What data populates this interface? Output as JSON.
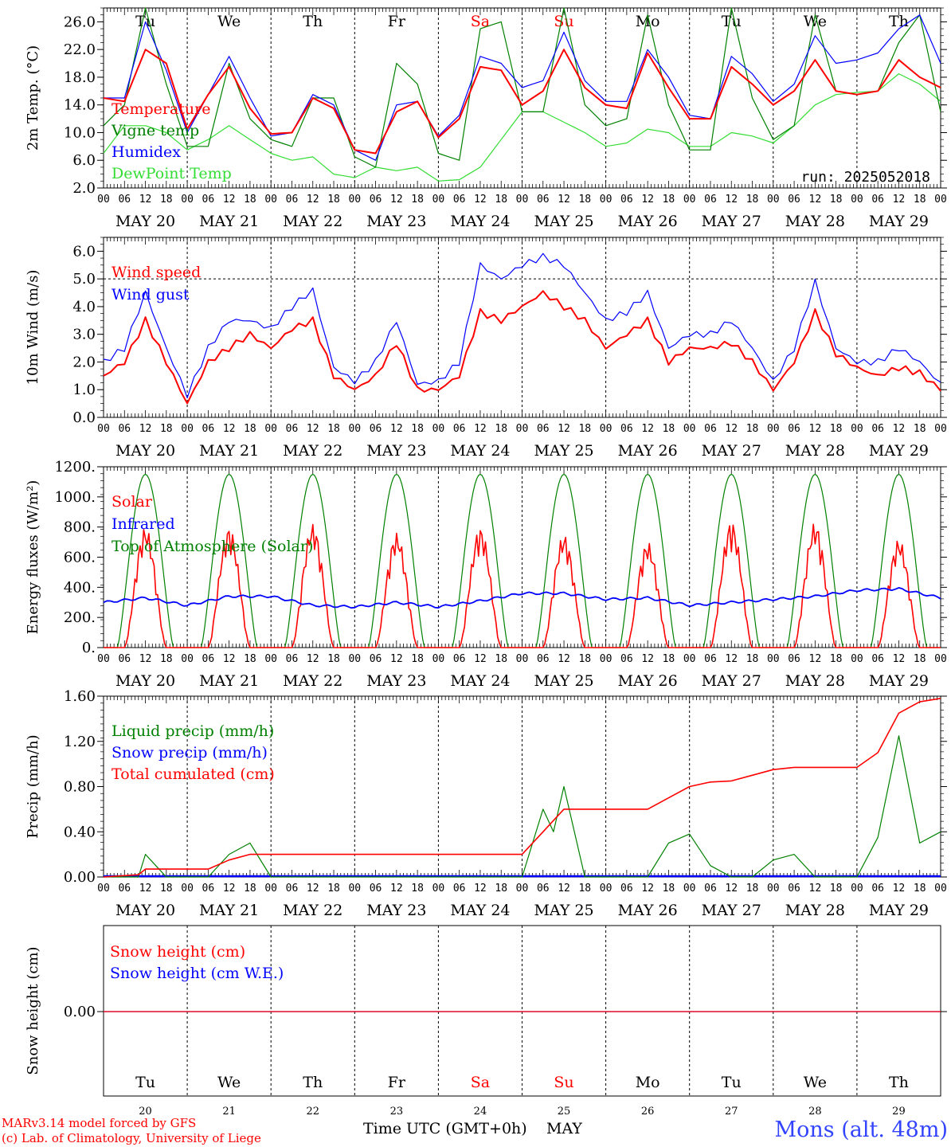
{
  "days": [
    "Tu",
    "We",
    "Th",
    "Fr",
    "Sa",
    "Su",
    "Mo",
    "Tu",
    "We",
    "Th"
  ],
  "weekend_days": [
    "Sa",
    "Su"
  ],
  "dates": [
    "MAY 20",
    "MAY 21",
    "MAY 22",
    "MAY 23",
    "MAY 24",
    "MAY 25",
    "MAY 26",
    "MAY 27",
    "MAY 28",
    "MAY 29"
  ],
  "day_numbers": [
    "20",
    "21",
    "22",
    "23",
    "24",
    "25",
    "26",
    "27",
    "28",
    "29"
  ],
  "hour_labels": [
    "00",
    "06",
    "12",
    "18"
  ],
  "run_label": "run: 2025052018",
  "footer": {
    "credit1": "MARv3.14 model forced by GFS",
    "credit2": "(c) Lab. of Climatology, University of Liege",
    "xlabel": "Time UTC (GMT+0h)",
    "month": "MAY",
    "station": "Mons (alt. 48m)"
  },
  "colors": {
    "red": "#ff0000",
    "green": "#008000",
    "blue": "#0000ff",
    "lightgreen": "#33dd33",
    "station": "#3344ff"
  },
  "chart_data": [
    {
      "type": "line",
      "ylabel": "2m Temp. (°C)",
      "ylim": [
        2,
        28
      ],
      "yticks": [
        "2.0",
        "6.0",
        "10.0",
        "14.0",
        "18.0",
        "22.0",
        "26.0"
      ],
      "legend": [
        "Temperature",
        "Vigne temp",
        "Humidex",
        "DewPoint Temp"
      ],
      "x_hours": [
        0,
        6,
        12,
        18,
        24,
        30,
        36,
        42,
        48,
        54,
        60,
        66,
        72,
        78,
        84,
        90,
        96,
        102,
        108,
        114,
        120,
        126,
        132,
        138,
        144,
        150,
        156,
        162,
        168,
        174,
        180,
        186,
        192,
        198,
        204,
        210,
        216,
        222,
        228,
        234,
        240
      ],
      "series": [
        {
          "name": "Temperature",
          "color": "#ff0000",
          "values": [
            15,
            14.5,
            22,
            20,
            10.5,
            15.5,
            19.5,
            13.5,
            9.8,
            10,
            15,
            13.5,
            7.5,
            7,
            13,
            14.5,
            9.3,
            12,
            19.5,
            19,
            14,
            16,
            22,
            16.5,
            14,
            13.5,
            21.5,
            16.5,
            12,
            12,
            19.5,
            17,
            14,
            16,
            20.5,
            16,
            15.5,
            16,
            20.5,
            18,
            16.5
          ]
        },
        {
          "name": "Vigne temp",
          "color": "#008000",
          "values": [
            11,
            14,
            28,
            17,
            8,
            8,
            20,
            12,
            9,
            8,
            15,
            15,
            6.5,
            5,
            20,
            17,
            7,
            6,
            25,
            26,
            13,
            13,
            28,
            14,
            11,
            12,
            27,
            14,
            7.5,
            7.5,
            28,
            15,
            9,
            11,
            27,
            16,
            15.5,
            16,
            23,
            27,
            13
          ]
        },
        {
          "name": "Humidex",
          "color": "#0000ff",
          "values": [
            15,
            15,
            26,
            19,
            10,
            15.5,
            21,
            15,
            9.5,
            10,
            15.5,
            14,
            7.5,
            6,
            14,
            14.5,
            9.5,
            12.5,
            21,
            20,
            16.5,
            17.5,
            24.5,
            17.5,
            14.5,
            14.5,
            22,
            18,
            12.5,
            12,
            21,
            18.5,
            14.5,
            17,
            24,
            20,
            20.5,
            21.5,
            25,
            27,
            20
          ]
        },
        {
          "name": "DewPoint Temp",
          "color": "#33dd33",
          "values": [
            7,
            11,
            11,
            10,
            7.5,
            9,
            11,
            9,
            7,
            6,
            6.5,
            4,
            3.5,
            5,
            4.5,
            5,
            3,
            3.2,
            5,
            9,
            13,
            13,
            11.5,
            10,
            8,
            8.5,
            10.5,
            10,
            8,
            8,
            10,
            9.5,
            8.5,
            11,
            14,
            15.5,
            15.8,
            16,
            18.5,
            17,
            14.5
          ]
        }
      ]
    },
    {
      "type": "line",
      "ylabel": "10m Wind (m/s)",
      "ylim": [
        0,
        6.5
      ],
      "yticks": [
        "0.0",
        "1.0",
        "2.0",
        "3.0",
        "4.0",
        "5.0",
        "6.0"
      ],
      "reference_line": 5.0,
      "legend": [
        "Wind speed",
        "Wind gust"
      ],
      "x_hours": [
        0,
        6,
        12,
        18,
        24,
        30,
        36,
        42,
        48,
        54,
        60,
        66,
        72,
        78,
        84,
        90,
        96,
        102,
        108,
        114,
        120,
        126,
        132,
        138,
        144,
        150,
        156,
        162,
        168,
        174,
        180,
        186,
        192,
        198,
        204,
        210,
        216,
        222,
        228,
        234,
        240
      ],
      "series": [
        {
          "name": "Wind speed",
          "color": "#ff0000",
          "values": [
            1.5,
            2,
            3.5,
            2,
            0.5,
            2,
            2.5,
            3,
            2.5,
            3.2,
            3.5,
            1.5,
            1,
            1.5,
            2.7,
            1,
            1,
            1.5,
            3.8,
            3.5,
            4,
            4.5,
            4,
            3.5,
            2.5,
            3,
            3.5,
            2,
            2.5,
            2.5,
            2.7,
            2,
            1,
            2,
            3.8,
            2.3,
            1.8,
            1.5,
            1.8,
            1.6,
            1
          ]
        },
        {
          "name": "Wind gust",
          "color": "#0000ff",
          "values": [
            2,
            2.5,
            4.5,
            2.5,
            0.8,
            2.5,
            3.5,
            3.5,
            3.2,
            4,
            4.6,
            1.8,
            1.3,
            2,
            3.5,
            1.2,
            1.3,
            2,
            5.5,
            5,
            5.5,
            5.8,
            5.5,
            4.5,
            3.5,
            3.8,
            4.5,
            2.5,
            3,
            3,
            3.5,
            2.5,
            1.3,
            2.5,
            4.9,
            2.5,
            2,
            2,
            2.5,
            2,
            1.2
          ]
        }
      ]
    },
    {
      "type": "line",
      "ylabel": "Energy fluxes (W/m²)",
      "ylim": [
        0,
        1200
      ],
      "yticks": [
        "0.",
        "200.",
        "400.",
        "600.",
        "800.",
        "1000.",
        "1200."
      ],
      "legend": [
        "Solar",
        "Infrared",
        "Top of Atmosphere (Solar)"
      ],
      "toa_peak": 1150,
      "solar_peaks": [
        800,
        800,
        820,
        760,
        800,
        750,
        700,
        840,
        830,
        720
      ],
      "infrared_hours": [
        0,
        12,
        24,
        36,
        48,
        60,
        72,
        84,
        96,
        108,
        120,
        132,
        144,
        156,
        168,
        180,
        192,
        204,
        216,
        228,
        240
      ],
      "infrared_values": [
        300,
        330,
        280,
        340,
        340,
        280,
        270,
        300,
        270,
        310,
        360,
        360,
        320,
        330,
        280,
        300,
        320,
        340,
        380,
        390,
        330
      ],
      "series": [
        {
          "name": "Solar",
          "color": "#ff0000"
        },
        {
          "name": "Infrared",
          "color": "#0000ff"
        },
        {
          "name": "Top of Atmosphere (Solar)",
          "color": "#008000"
        }
      ]
    },
    {
      "type": "line",
      "ylabel": "Precip (mm/h)",
      "ylim": [
        0,
        1.6
      ],
      "yticks": [
        "0.00",
        "0.40",
        "0.80",
        "1.20",
        "1.60"
      ],
      "legend": [
        "Liquid precip (mm/h)",
        "Snow precip (mm/h)",
        "Total cumulated (cm)"
      ],
      "x_hours": [
        0,
        10,
        12,
        15,
        18,
        24,
        30,
        36,
        42,
        48,
        66,
        72,
        84,
        96,
        108,
        114,
        120,
        126,
        129,
        132,
        138,
        144,
        156,
        162,
        168,
        174,
        180,
        186,
        192,
        198,
        204,
        210,
        216,
        222,
        228,
        234,
        240
      ],
      "series": [
        {
          "name": "Liquid precip (mm/h)",
          "color": "#008000",
          "values": [
            0,
            0,
            0.2,
            0.1,
            0,
            0,
            0,
            0.2,
            0.3,
            0,
            0,
            0,
            0,
            0,
            0,
            0,
            0,
            0.6,
            0.4,
            0.8,
            0,
            0,
            0,
            0.3,
            0.38,
            0.1,
            0,
            0,
            0.15,
            0.2,
            0,
            0,
            0,
            0.35,
            1.25,
            0.3,
            0.4
          ]
        },
        {
          "name": "Snow precip (mm/h)",
          "color": "#0000ff",
          "values": [
            0,
            0,
            0,
            0,
            0,
            0,
            0,
            0,
            0,
            0,
            0,
            0,
            0,
            0,
            0,
            0,
            0,
            0,
            0,
            0,
            0,
            0,
            0,
            0,
            0,
            0,
            0,
            0,
            0,
            0,
            0,
            0,
            0,
            0,
            0,
            0,
            0
          ]
        },
        {
          "name": "Total cumulated (cm)",
          "color": "#ff0000",
          "values": [
            0,
            0.02,
            0.07,
            0.07,
            0.07,
            0.07,
            0.07,
            0.15,
            0.2,
            0.2,
            0.2,
            0.2,
            0.2,
            0.2,
            0.2,
            0.2,
            0.2,
            0.4,
            0.5,
            0.6,
            0.6,
            0.6,
            0.6,
            0.7,
            0.8,
            0.84,
            0.85,
            0.9,
            0.95,
            0.97,
            0.97,
            0.97,
            0.97,
            1.1,
            1.45,
            1.55,
            1.58
          ]
        }
      ]
    },
    {
      "type": "line",
      "ylabel": "Snow height (cm)",
      "yticks": [
        "0.00"
      ],
      "legend": [
        "Snow height (cm)",
        "Snow height (cm W.E.)"
      ],
      "series": [
        {
          "name": "Snow height (cm)",
          "color": "#ff0000",
          "values": [
            0,
            0
          ]
        },
        {
          "name": "Snow height (cm W.E.)",
          "color": "#0000ff",
          "values": [
            0,
            0
          ]
        }
      ]
    }
  ]
}
